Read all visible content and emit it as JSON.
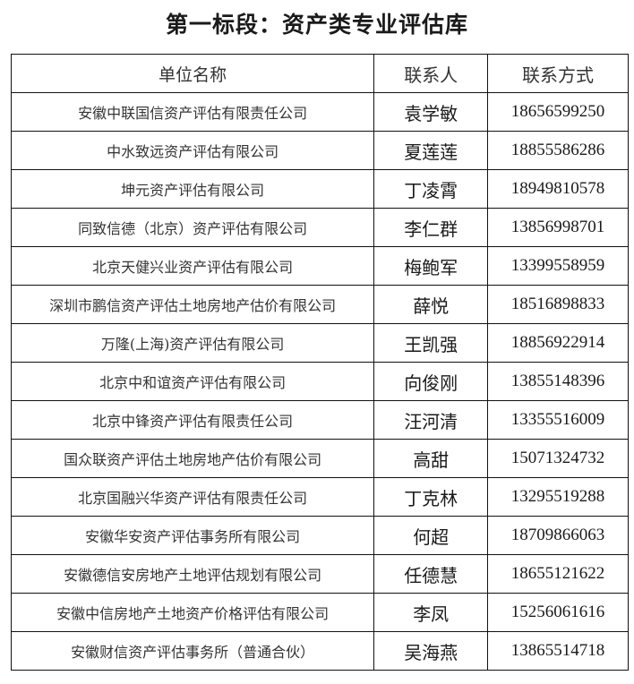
{
  "title": "第一标段：资产类专业评估库",
  "table": {
    "headers": [
      "单位名称",
      "联系人",
      "联系方式"
    ],
    "rows": [
      [
        "安徽中联国信资产评估有限责任公司",
        "袁学敏",
        "18656599250"
      ],
      [
        "中水致远资产评估有限公司",
        "夏莲莲",
        "18855586286"
      ],
      [
        "坤元资产评估有限公司",
        "丁凌霄",
        "18949810578"
      ],
      [
        "同致信德（北京）资产评估有限公司",
        "李仁群",
        "13856998701"
      ],
      [
        "北京天健兴业资产评估有限公司",
        "梅鲍军",
        "13399558959"
      ],
      [
        "深圳市鹏信资产评估土地房地产估价有限公司",
        "薛悦",
        "18516898833"
      ],
      [
        "万隆(上海)资产评估有限公司",
        "王凯强",
        "18856922914"
      ],
      [
        "北京中和谊资产评估有限公司",
        "向俊刚",
        "13855148396"
      ],
      [
        "北京中锋资产评估有限责任公司",
        "汪河清",
        "13355516009"
      ],
      [
        "国众联资产评估土地房地产估价有限公司",
        "高甜",
        "15071324732"
      ],
      [
        "北京国融兴华资产评估有限责任公司",
        "丁克林",
        "13295519288"
      ],
      [
        "安徽华安资产评估事务所有限公司",
        "何超",
        "18709866063"
      ],
      [
        "安徽德信安房地产土地评估规划有限公司",
        "任德慧",
        "18655121622"
      ],
      [
        "安徽中信房地产土地资产价格评估有限公司",
        "李凤",
        "15256061616"
      ],
      [
        "安徽财信资产评估事务所（普通合伙）",
        "吴海燕",
        "13865514718"
      ]
    ]
  }
}
